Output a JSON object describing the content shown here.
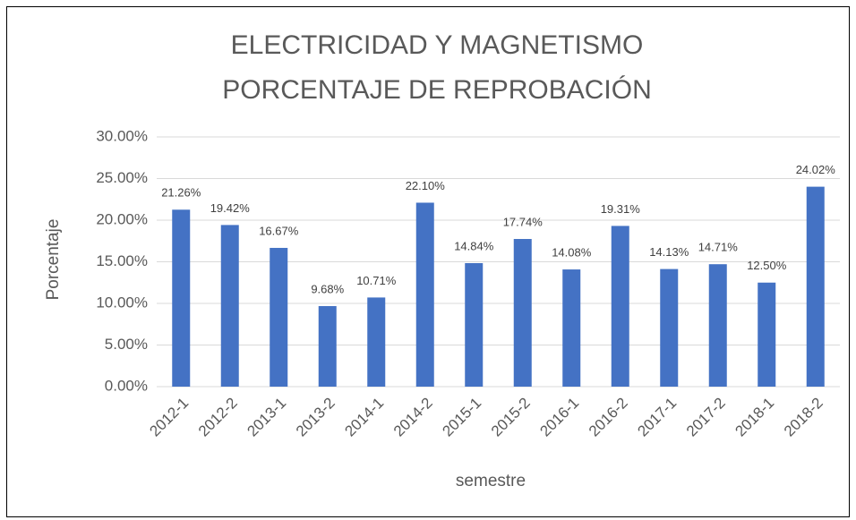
{
  "chart_data": {
    "type": "bar",
    "title": [
      "ELECTRICIDAD Y MAGNETISMO",
      "PORCENTAJE DE REPROBACIÓN"
    ],
    "x_label": "semestre",
    "y_label": "Porcentaje",
    "categories": [
      "2012-1",
      "2012-2",
      "2013-1",
      "2013-2",
      "2014-1",
      "2014-2",
      "2015-1",
      "2015-2",
      "2016-1",
      "2016-2",
      "2017-1",
      "2017-2",
      "2018-1",
      "2018-2"
    ],
    "values": [
      21.26,
      19.42,
      16.67,
      9.68,
      10.71,
      22.1,
      14.84,
      17.74,
      14.08,
      19.31,
      14.13,
      14.71,
      12.5,
      24.02
    ],
    "value_labels": [
      "21.26%",
      "19.42%",
      "16.67%",
      "9.68%",
      "10.71%",
      "22.10%",
      "14.84%",
      "17.74%",
      "14.08%",
      "19.31%",
      "14.13%",
      "14.71%",
      "12.50%",
      "24.02%"
    ],
    "color": "#4472c4",
    "ylim": [
      0,
      30
    ],
    "yticks": [
      {
        "value": 0,
        "label": "0.00%"
      },
      {
        "value": 5,
        "label": "5.00%"
      },
      {
        "value": 10,
        "label": "10.00%"
      },
      {
        "value": 15,
        "label": "15.00%"
      },
      {
        "value": 20,
        "label": "20.00%"
      },
      {
        "value": 25,
        "label": "25.00%"
      },
      {
        "value": 30,
        "label": "30.00%"
      }
    ],
    "grid": true
  }
}
